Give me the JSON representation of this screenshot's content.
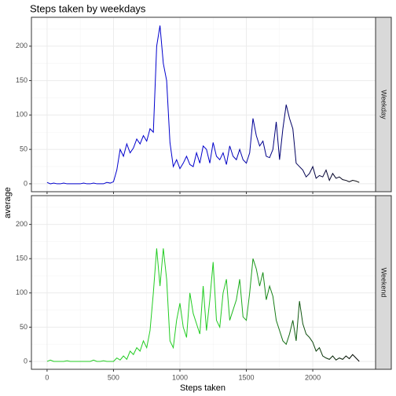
{
  "chart_data": {
    "type": "line",
    "title": "Steps taken by weekdays",
    "xlabel": "Steps taken",
    "ylabel": "average",
    "x": [
      0,
      25,
      50,
      75,
      100,
      125,
      150,
      175,
      200,
      225,
      250,
      275,
      300,
      325,
      350,
      375,
      400,
      425,
      450,
      475,
      500,
      525,
      550,
      575,
      600,
      625,
      650,
      675,
      700,
      725,
      750,
      775,
      800,
      825,
      850,
      875,
      900,
      925,
      950,
      975,
      1000,
      1025,
      1050,
      1075,
      1100,
      1125,
      1150,
      1175,
      1200,
      1225,
      1250,
      1275,
      1300,
      1325,
      1350,
      1375,
      1400,
      1425,
      1450,
      1475,
      1500,
      1525,
      1550,
      1575,
      1600,
      1625,
      1650,
      1675,
      1700,
      1725,
      1750,
      1775,
      1800,
      1825,
      1850,
      1875,
      1900,
      1925,
      1950,
      1975,
      2000,
      2025,
      2050,
      2075,
      2100,
      2125,
      2150,
      2175,
      2200,
      2225,
      2250,
      2275,
      2300,
      2325,
      2350
    ],
    "series": [
      {
        "name": "Weekday",
        "color": [
          "#0000cd",
          "#000000"
        ],
        "values": [
          2,
          0,
          1,
          0,
          0,
          1,
          0,
          0,
          0,
          0,
          0,
          1,
          0,
          0,
          1,
          0,
          0,
          0,
          2,
          1,
          3,
          20,
          50,
          40,
          58,
          45,
          52,
          65,
          58,
          70,
          62,
          80,
          75,
          200,
          230,
          175,
          150,
          60,
          25,
          35,
          22,
          30,
          40,
          28,
          25,
          45,
          30,
          55,
          50,
          30,
          60,
          40,
          35,
          45,
          28,
          55,
          40,
          35,
          50,
          35,
          30,
          45,
          95,
          70,
          55,
          62,
          40,
          38,
          50,
          90,
          35,
          80,
          115,
          95,
          80,
          30,
          25,
          20,
          10,
          15,
          25,
          8,
          12,
          10,
          20,
          5,
          15,
          8,
          10,
          6,
          5,
          3,
          5,
          4,
          2
        ]
      },
      {
        "name": "Weekend",
        "color": [
          "#22cc22",
          "#000000"
        ],
        "values": [
          0,
          2,
          0,
          0,
          0,
          0,
          1,
          0,
          0,
          0,
          0,
          0,
          0,
          0,
          2,
          0,
          0,
          1,
          0,
          0,
          0,
          5,
          2,
          8,
          3,
          15,
          10,
          20,
          15,
          30,
          20,
          45,
          100,
          165,
          110,
          165,
          120,
          30,
          20,
          60,
          85,
          50,
          35,
          100,
          70,
          55,
          40,
          110,
          45,
          90,
          145,
          60,
          50,
          100,
          120,
          60,
          75,
          90,
          120,
          65,
          60,
          100,
          150,
          135,
          110,
          130,
          90,
          110,
          95,
          60,
          45,
          30,
          25,
          40,
          60,
          30,
          88,
          55,
          40,
          35,
          28,
          15,
          20,
          8,
          5,
          3,
          8,
          2,
          5,
          3,
          8,
          4,
          10,
          5,
          0
        ]
      }
    ],
    "xlim": [
      -117.75,
      2472.75
    ],
    "ylim": [
      -11.5,
      242
    ],
    "xticks": [
      0,
      500,
      1000,
      1500,
      2000
    ],
    "yticks": [
      0,
      50,
      100,
      150,
      200
    ],
    "grid": true
  }
}
